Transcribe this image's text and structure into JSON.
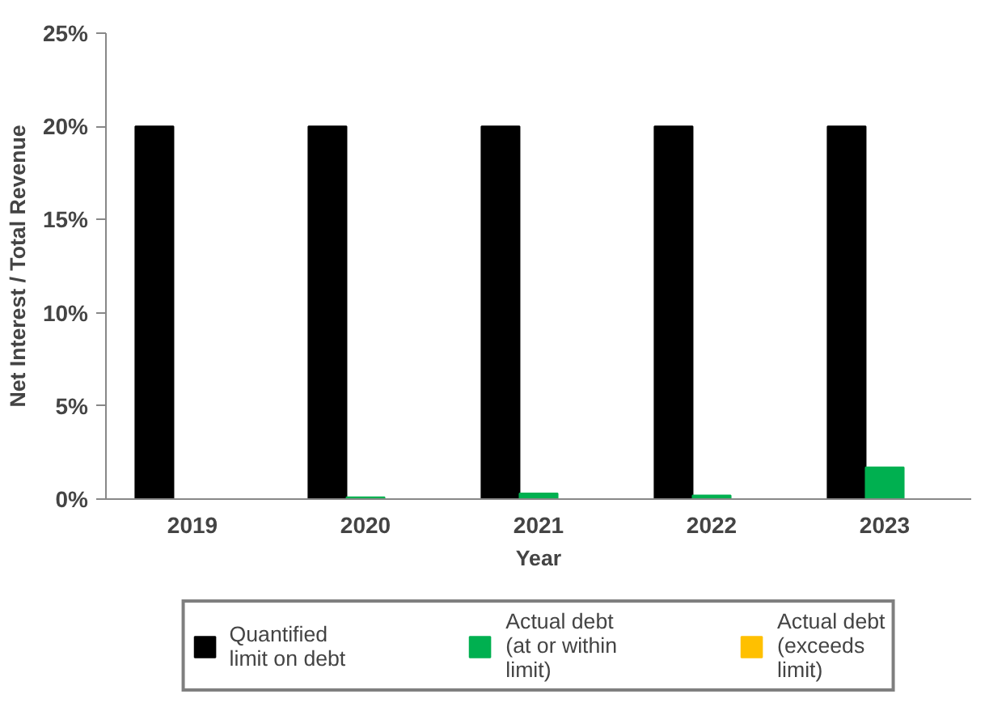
{
  "chart_data": {
    "type": "bar",
    "xlabel": "Year",
    "ylabel": "Net Interest / Total Revenue",
    "categories": [
      "2019",
      "2020",
      "2021",
      "2022",
      "2023"
    ],
    "series": [
      {
        "name": "Quantified limit on debt",
        "color": "#000000",
        "values": [
          20,
          20,
          20,
          20,
          20
        ]
      },
      {
        "name": "Actual debt (at or within limit)",
        "color": "#00b050",
        "values": [
          0,
          0.1,
          0.3,
          0.2,
          1.7
        ]
      },
      {
        "name": "Actual debt (exceeds limit)",
        "color": "#ffc000",
        "values": [
          0,
          0,
          0,
          0,
          0
        ]
      }
    ],
    "ylim": [
      0,
      25
    ],
    "yticks": [
      {
        "value": 0,
        "label": "0%"
      },
      {
        "value": 5,
        "label": "5%"
      },
      {
        "value": 10,
        "label": "10%"
      },
      {
        "value": 15,
        "label": "15%"
      },
      {
        "value": 20,
        "label": "20%"
      },
      {
        "value": 25,
        "label": "25%"
      }
    ],
    "grid": false,
    "legend": "bottom"
  }
}
